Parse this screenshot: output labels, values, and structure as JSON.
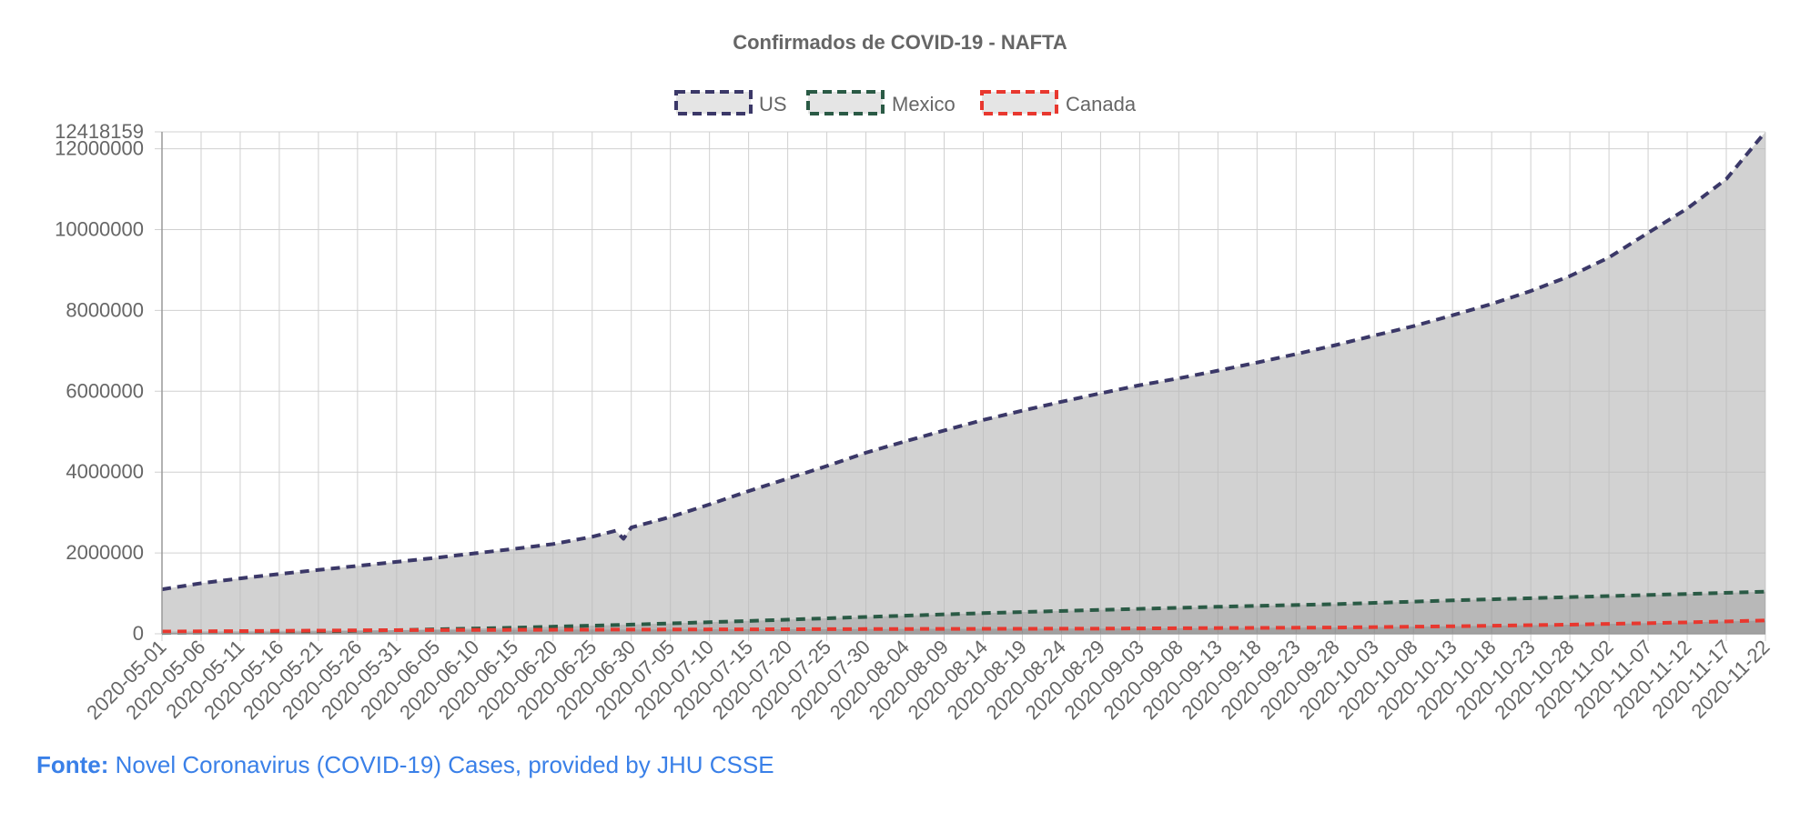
{
  "colors": {
    "US": "#3b3868",
    "Mexico": "#2a5a45",
    "Canada": "#e8382f",
    "fill": "#e5e5e5",
    "grid": "#d0d0d0",
    "text": "#666666",
    "source": "#3a80e8"
  },
  "source": {
    "prefix": "Fonte:",
    "text": "Novel Coronavirus (COVID-19) Cases, provided by JHU CSSE"
  },
  "chart_data": {
    "type": "area",
    "title": "Confirmados de COVID-19 - NAFTA",
    "legend_position": "top-center",
    "grid": true,
    "xlabel": "",
    "ylabel": "",
    "ylim": [
      0,
      12418159
    ],
    "y_ticks": [
      0,
      2000000,
      4000000,
      6000000,
      8000000,
      10000000,
      12000000,
      12418159
    ],
    "x_start": "2020-05-01",
    "x_end": "2020-11-22",
    "x_tick_labels": [
      "2020-05-01",
      "2020-05-06",
      "2020-05-11",
      "2020-05-16",
      "2020-05-21",
      "2020-05-26",
      "2020-05-31",
      "2020-06-05",
      "2020-06-10",
      "2020-06-15",
      "2020-06-20",
      "2020-06-25",
      "2020-06-30",
      "2020-07-05",
      "2020-07-10",
      "2020-07-15",
      "2020-07-20",
      "2020-07-25",
      "2020-07-30",
      "2020-08-04",
      "2020-08-09",
      "2020-08-14",
      "2020-08-19",
      "2020-08-24",
      "2020-08-29",
      "2020-09-03",
      "2020-09-08",
      "2020-09-13",
      "2020-09-18",
      "2020-09-23",
      "2020-09-28",
      "2020-10-03",
      "2020-10-08",
      "2020-10-13",
      "2020-10-18",
      "2020-10-23",
      "2020-10-28",
      "2020-11-02",
      "2020-11-07",
      "2020-11-12",
      "2020-11-17",
      "2020-11-22"
    ],
    "series": [
      {
        "name": "US",
        "points": [
          [
            "2020-05-01",
            1100000
          ],
          [
            "2020-05-06",
            1250000
          ],
          [
            "2020-05-11",
            1370000
          ],
          [
            "2020-05-16",
            1480000
          ],
          [
            "2020-05-21",
            1580000
          ],
          [
            "2020-05-26",
            1680000
          ],
          [
            "2020-05-31",
            1780000
          ],
          [
            "2020-06-05",
            1880000
          ],
          [
            "2020-06-10",
            1990000
          ],
          [
            "2020-06-15",
            2100000
          ],
          [
            "2020-06-20",
            2220000
          ],
          [
            "2020-06-25",
            2400000
          ],
          [
            "2020-06-28",
            2550000
          ],
          [
            "2020-06-29",
            2350000
          ],
          [
            "2020-06-30",
            2630000
          ],
          [
            "2020-07-05",
            2890000
          ],
          [
            "2020-07-10",
            3200000
          ],
          [
            "2020-07-15",
            3530000
          ],
          [
            "2020-07-20",
            3840000
          ],
          [
            "2020-07-25",
            4150000
          ],
          [
            "2020-07-30",
            4480000
          ],
          [
            "2020-08-04",
            4760000
          ],
          [
            "2020-08-09",
            5030000
          ],
          [
            "2020-08-14",
            5290000
          ],
          [
            "2020-08-19",
            5520000
          ],
          [
            "2020-08-24",
            5740000
          ],
          [
            "2020-08-29",
            5950000
          ],
          [
            "2020-09-03",
            6150000
          ],
          [
            "2020-09-08",
            6320000
          ],
          [
            "2020-09-13",
            6510000
          ],
          [
            "2020-09-18",
            6710000
          ],
          [
            "2020-09-23",
            6920000
          ],
          [
            "2020-09-28",
            7140000
          ],
          [
            "2020-10-03",
            7380000
          ],
          [
            "2020-10-08",
            7610000
          ],
          [
            "2020-10-13",
            7880000
          ],
          [
            "2020-10-18",
            8160000
          ],
          [
            "2020-10-23",
            8480000
          ],
          [
            "2020-10-28",
            8850000
          ],
          [
            "2020-11-02",
            9310000
          ],
          [
            "2020-11-07",
            9920000
          ],
          [
            "2020-11-12",
            10520000
          ],
          [
            "2020-11-17",
            11250000
          ],
          [
            "2020-11-22",
            12418159
          ]
        ]
      },
      {
        "name": "Mexico",
        "points": [
          [
            "2020-05-01",
            20000
          ],
          [
            "2020-05-16",
            45000
          ],
          [
            "2020-05-31",
            90000
          ],
          [
            "2020-06-15",
            150000
          ],
          [
            "2020-06-30",
            227000
          ],
          [
            "2020-07-15",
            317000
          ],
          [
            "2020-07-30",
            416000
          ],
          [
            "2020-08-14",
            511000
          ],
          [
            "2020-08-29",
            591000
          ],
          [
            "2020-09-13",
            668000
          ],
          [
            "2020-09-28",
            733000
          ],
          [
            "2020-10-13",
            826000
          ],
          [
            "2020-10-28",
            907000
          ],
          [
            "2020-11-12",
            986000
          ],
          [
            "2020-11-22",
            1041000
          ]
        ]
      },
      {
        "name": "Canada",
        "points": [
          [
            "2020-05-01",
            55000
          ],
          [
            "2020-05-31",
            91000
          ],
          [
            "2020-06-30",
            104000
          ],
          [
            "2020-07-30",
            117000
          ],
          [
            "2020-08-29",
            128000
          ],
          [
            "2020-09-28",
            155000
          ],
          [
            "2020-10-13",
            186000
          ],
          [
            "2020-10-28",
            226000
          ],
          [
            "2020-11-12",
            282000
          ],
          [
            "2020-11-22",
            330000
          ]
        ]
      }
    ]
  }
}
